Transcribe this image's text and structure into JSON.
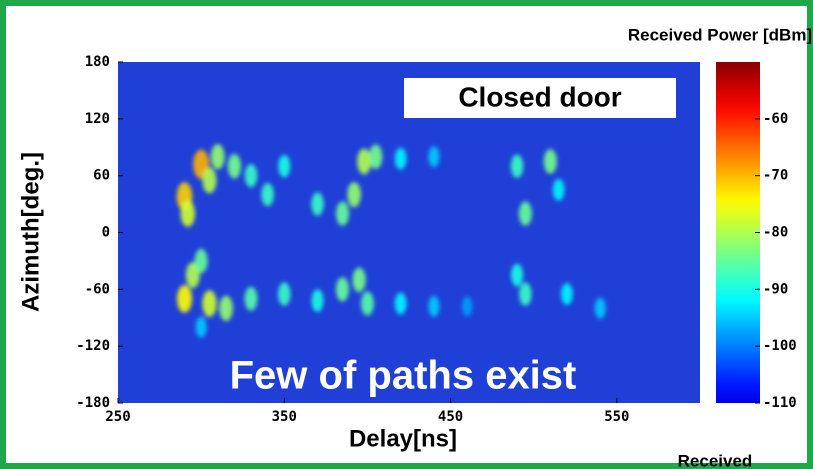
{
  "chart_data": {
    "type": "heatmap",
    "x_label": "Delay[ns]",
    "y_label": "Azimuth[deg.]",
    "colorbar_label": "Received Power [dBm]",
    "annotations": [
      "Closed door",
      "Few of paths exist",
      "Received"
    ],
    "xlim": [
      250,
      600
    ],
    "xticks": [
      250,
      350,
      450,
      550
    ],
    "ylim": [
      -180,
      180
    ],
    "yticks": [
      -180,
      -120,
      -60,
      0,
      60,
      120,
      180
    ],
    "clim": [
      -110,
      -50
    ],
    "cticks": [
      -110,
      -100,
      -90,
      -80,
      -70,
      -60
    ],
    "colormap": "jet",
    "background_color": "#1f3fd6",
    "frame_color": "#1fa84a",
    "points": {
      "x": [
        290,
        292,
        300,
        305,
        310,
        320,
        330,
        340,
        350,
        370,
        385,
        392,
        398,
        405,
        420,
        440,
        490,
        495,
        510,
        515,
        290,
        295,
        300,
        305,
        315,
        330,
        350,
        370,
        385,
        395,
        400,
        420,
        440,
        460,
        490,
        495,
        520,
        540,
        300
      ],
      "y": [
        38,
        20,
        72,
        55,
        80,
        70,
        60,
        40,
        70,
        30,
        20,
        40,
        75,
        80,
        78,
        80,
        70,
        20,
        75,
        45,
        -70,
        -45,
        -30,
        -75,
        -80,
        -70,
        -65,
        -72,
        -60,
        -50,
        -75,
        -75,
        -78,
        -78,
        -45,
        -65,
        -65,
        -80,
        -100
      ],
      "values": [
        -72,
        -78,
        -70,
        -80,
        -82,
        -84,
        -88,
        -88,
        -90,
        -88,
        -85,
        -82,
        -80,
        -84,
        -92,
        -95,
        -88,
        -85,
        -84,
        -92,
        -75,
        -80,
        -85,
        -78,
        -82,
        -86,
        -88,
        -90,
        -85,
        -84,
        -86,
        -92,
        -95,
        -98,
        -90,
        -88,
        -92,
        -95,
        -95
      ]
    }
  }
}
